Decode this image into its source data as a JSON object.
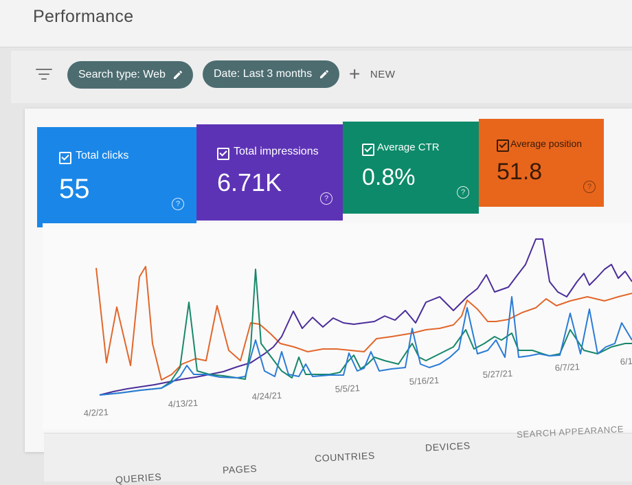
{
  "header": {
    "title": "Performance"
  },
  "filters": {
    "search_type_chip": "Search type: Web",
    "date_chip": "Date: Last 3 months",
    "new_label": "NEW"
  },
  "metrics": [
    {
      "label": "Total clicks",
      "value": "55",
      "color": "#1a87e8"
    },
    {
      "label": "Total impressions",
      "value": "6.71K",
      "color": "#5d33b6"
    },
    {
      "label": "Average CTR",
      "value": "0.8%",
      "color": "#0d8a6a"
    },
    {
      "label": "Average position",
      "value": "51.8",
      "color": "#e8661c"
    }
  ],
  "chart_data": {
    "type": "line",
    "x_tick_labels": [
      "4/2/21",
      "4/13/21",
      "4/24/21",
      "5/5/21",
      "5/16/21",
      "5/27/21",
      "6/7/21",
      "6/1"
    ],
    "series_colors": {
      "clicks": "#2a7bd6",
      "impressions": "#4b2d9a",
      "ctr": "#17876a",
      "position": "#e2662a"
    }
  },
  "tabs": [
    "QUERIES",
    "PAGES",
    "COUNTRIES",
    "DEVICES",
    "SEARCH APPEARANCE"
  ]
}
